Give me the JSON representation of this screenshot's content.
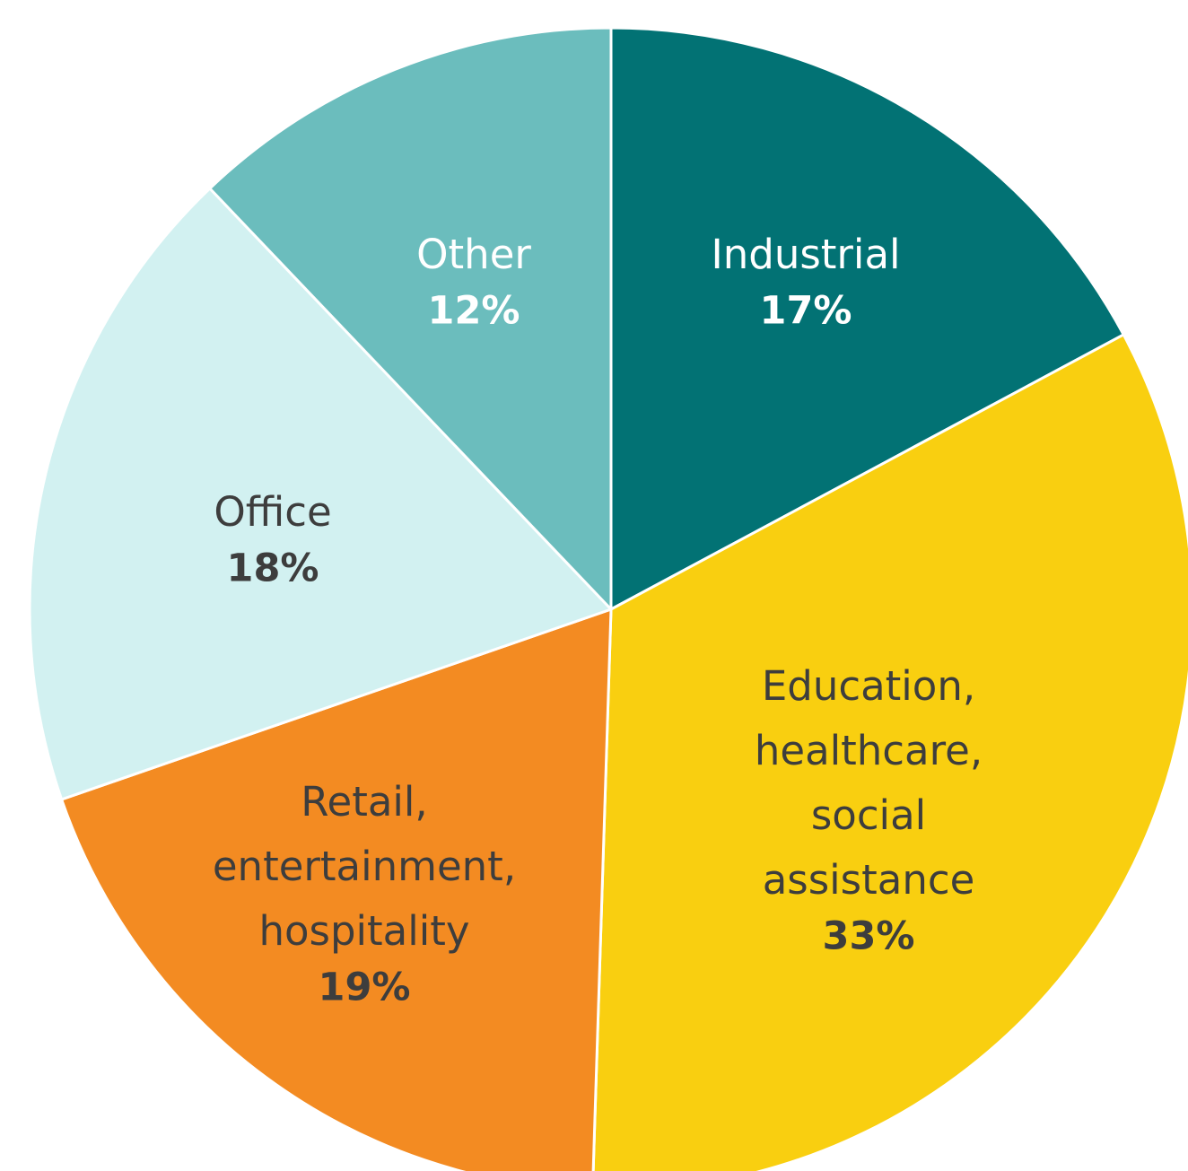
{
  "chart_data": {
    "type": "pie",
    "slices": [
      {
        "label_lines": [
          "Industrial"
        ],
        "value": 17,
        "value_label": "17%",
        "color": "#027274",
        "text_color": "#ffffff"
      },
      {
        "label_lines": [
          "Education,",
          "healthcare,",
          "social",
          "assistance"
        ],
        "value": 33,
        "value_label": "33%",
        "color": "#f9cf10",
        "text_color": "#3d3d3d"
      },
      {
        "label_lines": [
          "Retail,",
          "entertainment,",
          "hospitality"
        ],
        "value": 19,
        "value_label": "19%",
        "color": "#f38b22",
        "text_color": "#3d3d3d"
      },
      {
        "label_lines": [
          "Office"
        ],
        "value": 18,
        "value_label": "18%",
        "color": "#d2f1f1",
        "text_color": "#3d3d3d"
      },
      {
        "label_lines": [
          "Other"
        ],
        "value": 12,
        "value_label": "12%",
        "color": "#6bbdbd",
        "text_color": "#ffffff"
      }
    ]
  }
}
